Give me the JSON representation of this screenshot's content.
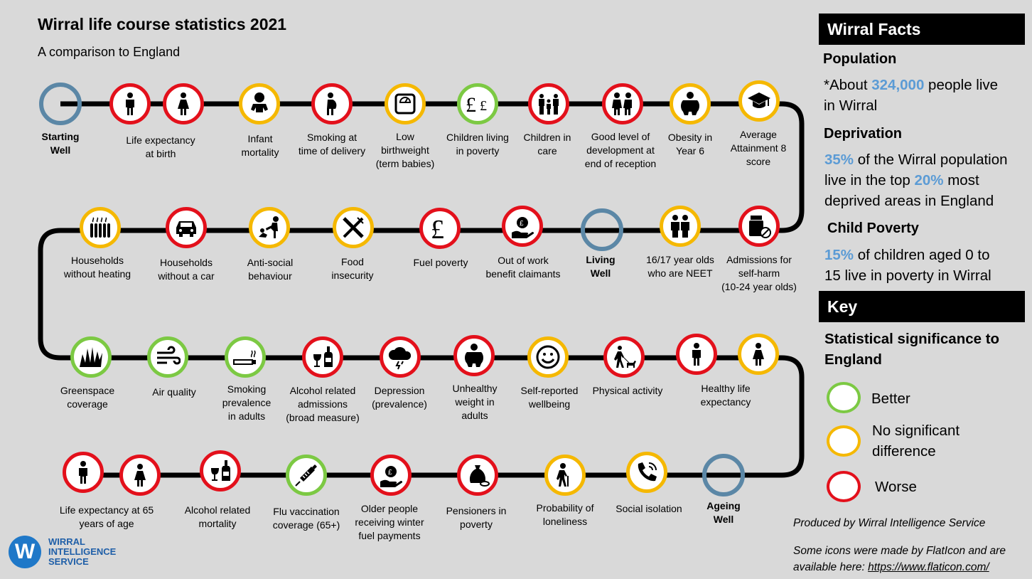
{
  "title": "Wirral life course statistics 2021",
  "subtitle": "A comparison to England",
  "colors": {
    "better": "#7cc943",
    "no_significant_difference": "#f5b800",
    "worse": "#e3101b",
    "stage": "#5b87a6",
    "highlight": "#5b9bd5"
  },
  "indicators": [
    {
      "label": "Starting\nWell",
      "status": "stage",
      "icon": "stage-marker"
    },
    {
      "label": "",
      "status": "worse",
      "icon": "man-icon"
    },
    {
      "label": "Life expectancy\nat birth",
      "status": "worse",
      "icon": "woman-icon"
    },
    {
      "label": "Infant\nmortality",
      "status": "ns",
      "icon": "baby-icon"
    },
    {
      "label": "Smoking at\ntime of delivery",
      "status": "worse",
      "icon": "pregnant-woman-icon"
    },
    {
      "label": "Low\nbirthweight\n(term babies)",
      "status": "ns",
      "icon": "weighing-scale-icon"
    },
    {
      "label": "Children living\nin poverty",
      "status": "better",
      "icon": "pound-coins-icon"
    },
    {
      "label": "Children in\ncare",
      "status": "worse",
      "icon": "family-icon"
    },
    {
      "label": "Good level of\ndevelopment at\nend of reception",
      "status": "worse",
      "icon": "children-icon"
    },
    {
      "label": "Obesity in\nYear 6",
      "status": "ns",
      "icon": "obese-person-icon"
    },
    {
      "label": "Average\nAttainment 8\nscore",
      "status": "ns",
      "icon": "graduation-cap-icon"
    },
    {
      "label": "Admissions for\nself-harm\n(10-24 year olds)",
      "status": "worse",
      "icon": "medicine-icon"
    },
    {
      "label": "16/17 year olds\nwho are NEET",
      "status": "ns",
      "icon": "students-icon"
    },
    {
      "label": "Living\nWell",
      "status": "stage",
      "icon": "stage-marker"
    },
    {
      "label": "Out of work\nbenefit claimants",
      "status": "worse",
      "icon": "money-hand-icon"
    },
    {
      "label": "Fuel poverty",
      "status": "worse",
      "icon": "pound-icon"
    },
    {
      "label": "Food\ninsecurity",
      "status": "ns",
      "icon": "cutlery-icon"
    },
    {
      "label": "Anti-social\nbehaviour",
      "status": "ns",
      "icon": "fight-icon"
    },
    {
      "label": "Households\nwithout a car",
      "status": "worse",
      "icon": "car-icon"
    },
    {
      "label": "Households\nwithout heating",
      "status": "ns",
      "icon": "radiator-icon"
    },
    {
      "label": "Greenspace\ncoverage",
      "status": "better",
      "icon": "grass-icon"
    },
    {
      "label": "Air quality",
      "status": "better",
      "icon": "wind-icon"
    },
    {
      "label": "Smoking\nprevalence\nin adults",
      "status": "better",
      "icon": "cigarette-icon"
    },
    {
      "label": "Alcohol related\nadmissions\n(broad measure)",
      "status": "worse",
      "icon": "wine-bottle-icon"
    },
    {
      "label": "Depression\n(prevalence)",
      "status": "worse",
      "icon": "storm-cloud-icon"
    },
    {
      "label": "Unhealthy\nweight in\nadults",
      "status": "worse",
      "icon": "obese-person-icon"
    },
    {
      "label": "Self-reported\nwellbeing",
      "status": "ns",
      "icon": "smiley-icon"
    },
    {
      "label": "Physical activity",
      "status": "worse",
      "icon": "dog-walker-icon"
    },
    {
      "label": "",
      "status": "worse",
      "icon": "man-icon"
    },
    {
      "label": "Healthy life\nexpectancy",
      "status": "ns",
      "icon": "woman-icon"
    },
    {
      "label": "Ageing\nWell",
      "status": "stage",
      "icon": "stage-marker"
    },
    {
      "label": "Social isolation",
      "status": "ns",
      "icon": "phone-icon"
    },
    {
      "label": "Probability of\nloneliness",
      "status": "ns",
      "icon": "elderly-icon"
    },
    {
      "label": "Pensioners in\npoverty",
      "status": "worse",
      "icon": "money-bag-icon"
    },
    {
      "label": "Older people\nreceiving winter\nfuel payments",
      "status": "worse",
      "icon": "money-hand-icon"
    },
    {
      "label": "Flu vaccination\ncoverage (65+)",
      "status": "better",
      "icon": "syringe-icon"
    },
    {
      "label": "Alcohol related\nmortality",
      "status": "worse",
      "icon": "wine-bottle-icon"
    },
    {
      "label": "",
      "status": "worse",
      "icon": "woman-icon"
    },
    {
      "label": "Life expectancy at 65\nyears of age",
      "status": "worse",
      "icon": "man-icon"
    }
  ],
  "facts": {
    "header": "Wirral Facts",
    "population_heading": "Population",
    "population_pre": "*About ",
    "population_value": "324,000",
    "population_post_1": " people live",
    "population_post_2": "in Wirral",
    "deprivation_heading": "Deprivation",
    "deprivation_value": "35%",
    "deprivation_text_1": " of the Wirral population",
    "deprivation_text_2a": "live in the top ",
    "deprivation_value_2": "20%",
    "deprivation_text_2b": " most",
    "deprivation_text_3": "deprived areas in England",
    "poverty_heading": "Child Poverty",
    "poverty_value": "15%",
    "poverty_text_1": " of children aged 0 to",
    "poverty_text_2": "15 live in poverty in Wirral"
  },
  "key": {
    "header": "Key",
    "heading_1": "Statistical significance to",
    "heading_2": "England",
    "better": "Better",
    "ns_1": "No significant",
    "ns_2": "difference",
    "worse": "Worse"
  },
  "footer": {
    "produced_by": "Produced by Wirral Intelligence Service",
    "icons_1": "Some icons were made by FlatIcon and are",
    "icons_2": "available here: ",
    "icons_link": "https://www.flaticon.com/"
  },
  "logo": {
    "mark": "W",
    "line1": "WIRRAL",
    "line2": "INTELLIGENCE",
    "line3": "SERVICE"
  }
}
